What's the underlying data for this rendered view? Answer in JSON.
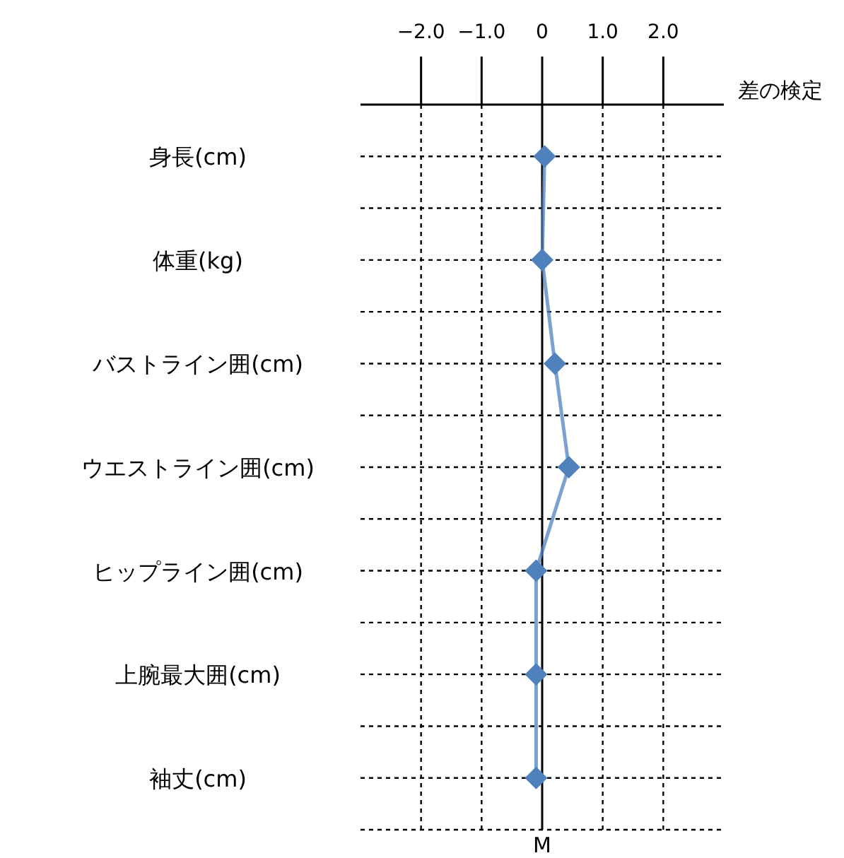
{
  "chart_data": {
    "type": "line",
    "orientation": "horizontal",
    "categories": [
      "身長(cm)",
      "体重(kg)",
      "バストライン囲(cm)",
      "ウエストライン囲(cm)",
      "ヒップライン囲(cm)",
      "上腕最大囲(cm)",
      "袖丈(cm)"
    ],
    "series": [
      {
        "color": "#4f81bd",
        "values": [
          0.04,
          0,
          0.21,
          0.44,
          -0.1,
          -0.1,
          -0.1
        ]
      }
    ],
    "xlim": [
      -3,
      3
    ],
    "xticks": [
      {
        "value": -2,
        "label": "−2.0"
      },
      {
        "value": -1,
        "label": "−1.0"
      },
      0,
      {
        "value": 1,
        "label": "1.0"
      },
      {
        "value": 2,
        "label": "2.0"
      }
    ],
    "xlabel": "差の検定",
    "ref_lines": [
      {
        "axis": "x",
        "value": 0,
        "label": "M",
        "color": "#000000"
      }
    ],
    "grid": true,
    "marker": "diamond",
    "line_style": "solid"
  }
}
